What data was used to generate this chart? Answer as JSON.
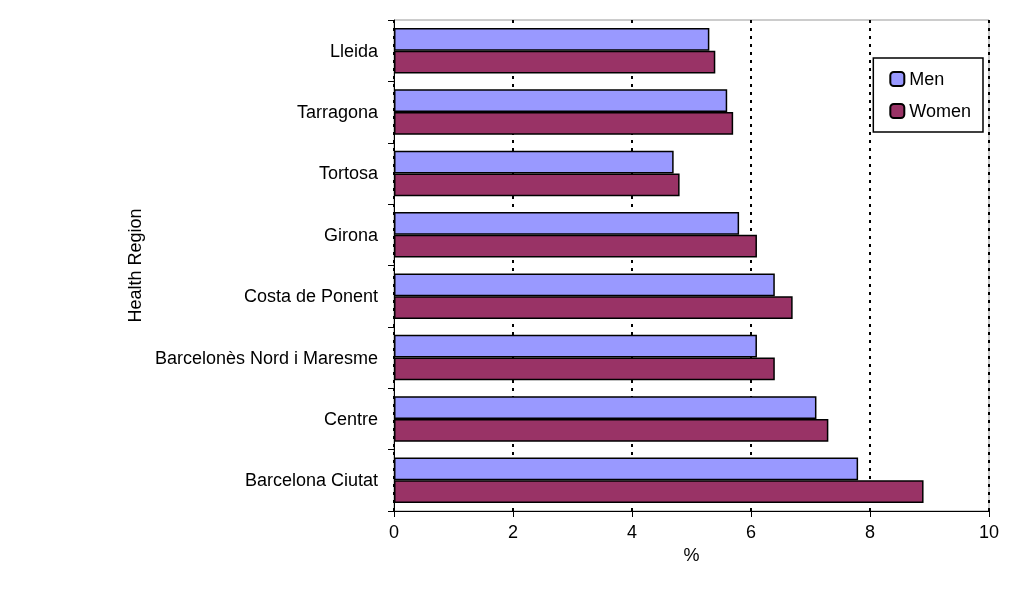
{
  "chart_data": {
    "type": "bar",
    "orientation": "horizontal",
    "xlabel": "%",
    "ylabel": "Health Region",
    "categories": [
      "Lleida",
      "Tarragona",
      "Tortosa",
      "Girona",
      "Costa de Ponent",
      "Barcelonès Nord i Maresme",
      "Centre",
      "Barcelona Ciutat"
    ],
    "series": [
      {
        "name": "Men",
        "color": "#9999ff",
        "values": [
          5.3,
          5.6,
          4.7,
          5.8,
          6.4,
          6.1,
          7.1,
          7.8
        ]
      },
      {
        "name": "Women",
        "color": "#993366",
        "values": [
          5.4,
          5.7,
          4.8,
          6.1,
          6.7,
          6.4,
          7.3,
          8.9
        ]
      }
    ],
    "xlim": [
      0,
      10
    ],
    "xticks": [
      0,
      2,
      4,
      6,
      8,
      10
    ],
    "grid": "x",
    "legend": "top right"
  }
}
